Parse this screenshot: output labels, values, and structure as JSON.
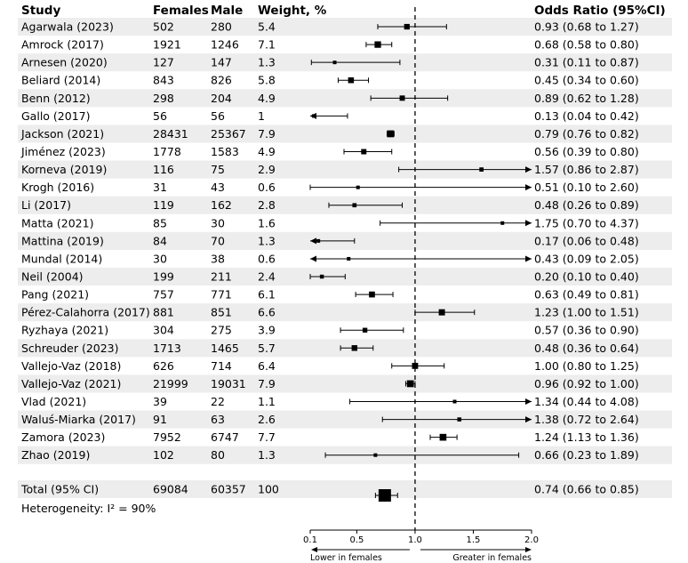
{
  "chart_data": {
    "type": "forest",
    "headers": {
      "study": "Study",
      "females": "Females",
      "male": "Male",
      "weight": "Weight, %",
      "or": "Odds Ratio (95%CI)"
    },
    "rows": [
      {
        "study": "Agarwala (2023)",
        "females": "502",
        "male": "280",
        "weight": "5.4",
        "or": 0.93,
        "lo": 0.68,
        "hi": 1.27,
        "label": "0.93 (0.68 to 1.27)"
      },
      {
        "study": "Amrock (2017)",
        "females": "1921",
        "male": "1246",
        "weight": "7.1",
        "or": 0.68,
        "lo": 0.58,
        "hi": 0.8,
        "label": "0.68 (0.58 to 0.80)"
      },
      {
        "study": "Arnesen (2020)",
        "females": "127",
        "male": "147",
        "weight": "1.3",
        "or": 0.31,
        "lo": 0.11,
        "hi": 0.87,
        "label": "0.31 (0.11 to 0.87)"
      },
      {
        "study": "Beliard (2014)",
        "females": "843",
        "male": "826",
        "weight": "5.8",
        "or": 0.45,
        "lo": 0.34,
        "hi": 0.6,
        "label": "0.45 (0.34 to 0.60)"
      },
      {
        "study": "Benn (2012)",
        "females": "298",
        "male": "204",
        "weight": "4.9",
        "or": 0.89,
        "lo": 0.62,
        "hi": 1.28,
        "label": "0.89 (0.62 to 1.28)"
      },
      {
        "study": "Gallo (2017)",
        "females": "56",
        "male": "56",
        "weight": "1",
        "or": 0.13,
        "lo": 0.04,
        "hi": 0.42,
        "label": "0.13 (0.04 to 0.42)"
      },
      {
        "study": "Jackson (2021)",
        "females": "28431",
        "male": "25367",
        "weight": "7.9",
        "or": 0.79,
        "lo": 0.76,
        "hi": 0.82,
        "label": "0.79 (0.76 to 0.82)"
      },
      {
        "study": "Jiménez (2023)",
        "females": "1778",
        "male": "1583",
        "weight": "4.9",
        "or": 0.56,
        "lo": 0.39,
        "hi": 0.8,
        "label": "0.56 (0.39 to 0.80)"
      },
      {
        "study": "Korneva (2019)",
        "females": "116",
        "male": "75",
        "weight": "2.9",
        "or": 1.57,
        "lo": 0.86,
        "hi": 2.87,
        "label": "1.57 (0.86 to 2.87)"
      },
      {
        "study": "Krogh (2016)",
        "females": "31",
        "male": "43",
        "weight": "0.6",
        "or": 0.51,
        "lo": 0.1,
        "hi": 2.6,
        "label": "0.51 (0.10 to 2.60)"
      },
      {
        "study": "Li (2017)",
        "females": "119",
        "male": "162",
        "weight": "2.8",
        "or": 0.48,
        "lo": 0.26,
        "hi": 0.89,
        "label": "0.48 (0.26 to 0.89)"
      },
      {
        "study": "Matta (2021)",
        "females": "85",
        "male": "30",
        "weight": "1.6",
        "or": 1.75,
        "lo": 0.7,
        "hi": 4.37,
        "label": "1.75 (0.70 to 4.37)"
      },
      {
        "study": "Mattina (2019)",
        "females": "84",
        "male": "70",
        "weight": "1.3",
        "or": 0.17,
        "lo": 0.06,
        "hi": 0.48,
        "label": "0.17 (0.06 to 0.48)"
      },
      {
        "study": "Mundal (2014)",
        "females": "30",
        "male": "38",
        "weight": "0.6",
        "or": 0.43,
        "lo": 0.09,
        "hi": 2.05,
        "label": "0.43 (0.09 to 2.05)"
      },
      {
        "study": "Neil (2004)",
        "females": "199",
        "male": "211",
        "weight": "2.4",
        "or": 0.2,
        "lo": 0.1,
        "hi": 0.4,
        "label": "0.20 (0.10 to 0.40)"
      },
      {
        "study": "Pang (2021)",
        "females": "757",
        "male": "771",
        "weight": "6.1",
        "or": 0.63,
        "lo": 0.49,
        "hi": 0.81,
        "label": "0.63 (0.49 to 0.81)"
      },
      {
        "study": "Pérez-Calahorra (2017)",
        "females": "881",
        "male": "851",
        "weight": "6.6",
        "or": 1.23,
        "lo": 1.0,
        "hi": 1.51,
        "label": "1.23 (1.00 to 1.51)"
      },
      {
        "study": "Ryzhaya (2021)",
        "females": "304",
        "male": "275",
        "weight": "3.9",
        "or": 0.57,
        "lo": 0.36,
        "hi": 0.9,
        "label": "0.57 (0.36 to 0.90)"
      },
      {
        "study": "Schreuder (2023)",
        "females": "1713",
        "male": "1465",
        "weight": "5.7",
        "or": 0.48,
        "lo": 0.36,
        "hi": 0.64,
        "label": "0.48 (0.36 to 0.64)"
      },
      {
        "study": "Vallejo-Vaz (2018)",
        "females": "626",
        "male": "714",
        "weight": "6.4",
        "or": 1.0,
        "lo": 0.8,
        "hi": 1.25,
        "label": "1.00 (0.80 to 1.25)"
      },
      {
        "study": "Vallejo-Vaz (2021)",
        "females": "21999",
        "male": "19031",
        "weight": "7.9",
        "or": 0.96,
        "lo": 0.92,
        "hi": 1.0,
        "label": "0.96 (0.92 to 1.00)"
      },
      {
        "study": "Vlad (2021)",
        "females": "39",
        "male": "22",
        "weight": "1.1",
        "or": 1.34,
        "lo": 0.44,
        "hi": 4.08,
        "label": "1.34 (0.44 to 4.08)"
      },
      {
        "study": "Waluś-Miarka (2017)",
        "females": "91",
        "male": "63",
        "weight": "2.6",
        "or": 1.38,
        "lo": 0.72,
        "hi": 2.64,
        "label": "1.38 (0.72 to 2.64)"
      },
      {
        "study": "Zamora (2023)",
        "females": "7952",
        "male": "6747",
        "weight": "7.7",
        "or": 1.24,
        "lo": 1.13,
        "hi": 1.36,
        "label": "1.24 (1.13 to 1.36)"
      },
      {
        "study": "Zhao (2019)",
        "females": "102",
        "male": "80",
        "weight": "1.3",
        "or": 0.66,
        "lo": 0.23,
        "hi": 1.89,
        "label": "0.66 (0.23 to 1.89)"
      }
    ],
    "total": {
      "study": "Total (95% CI)",
      "females": "69084",
      "male": "60357",
      "weight": "100",
      "or": 0.74,
      "lo": 0.66,
      "hi": 0.85,
      "label": "0.74 (0.66 to 0.85)"
    },
    "heterogeneity": "Heterogeneity: I² = 90%",
    "axis": {
      "ticks": [
        0.1,
        0.5,
        1.0,
        1.5,
        2.0
      ],
      "tick_labels": [
        "0.1",
        "0.5",
        "1.0",
        "1.5",
        "2.0"
      ],
      "xlim": [
        0.1,
        2.0
      ],
      "reference": 1.0
    },
    "direction_labels": {
      "left": "Lower in females",
      "right": "Greater in females"
    },
    "colors": {
      "row_shade": "#ededed",
      "marker": "#000000"
    }
  }
}
